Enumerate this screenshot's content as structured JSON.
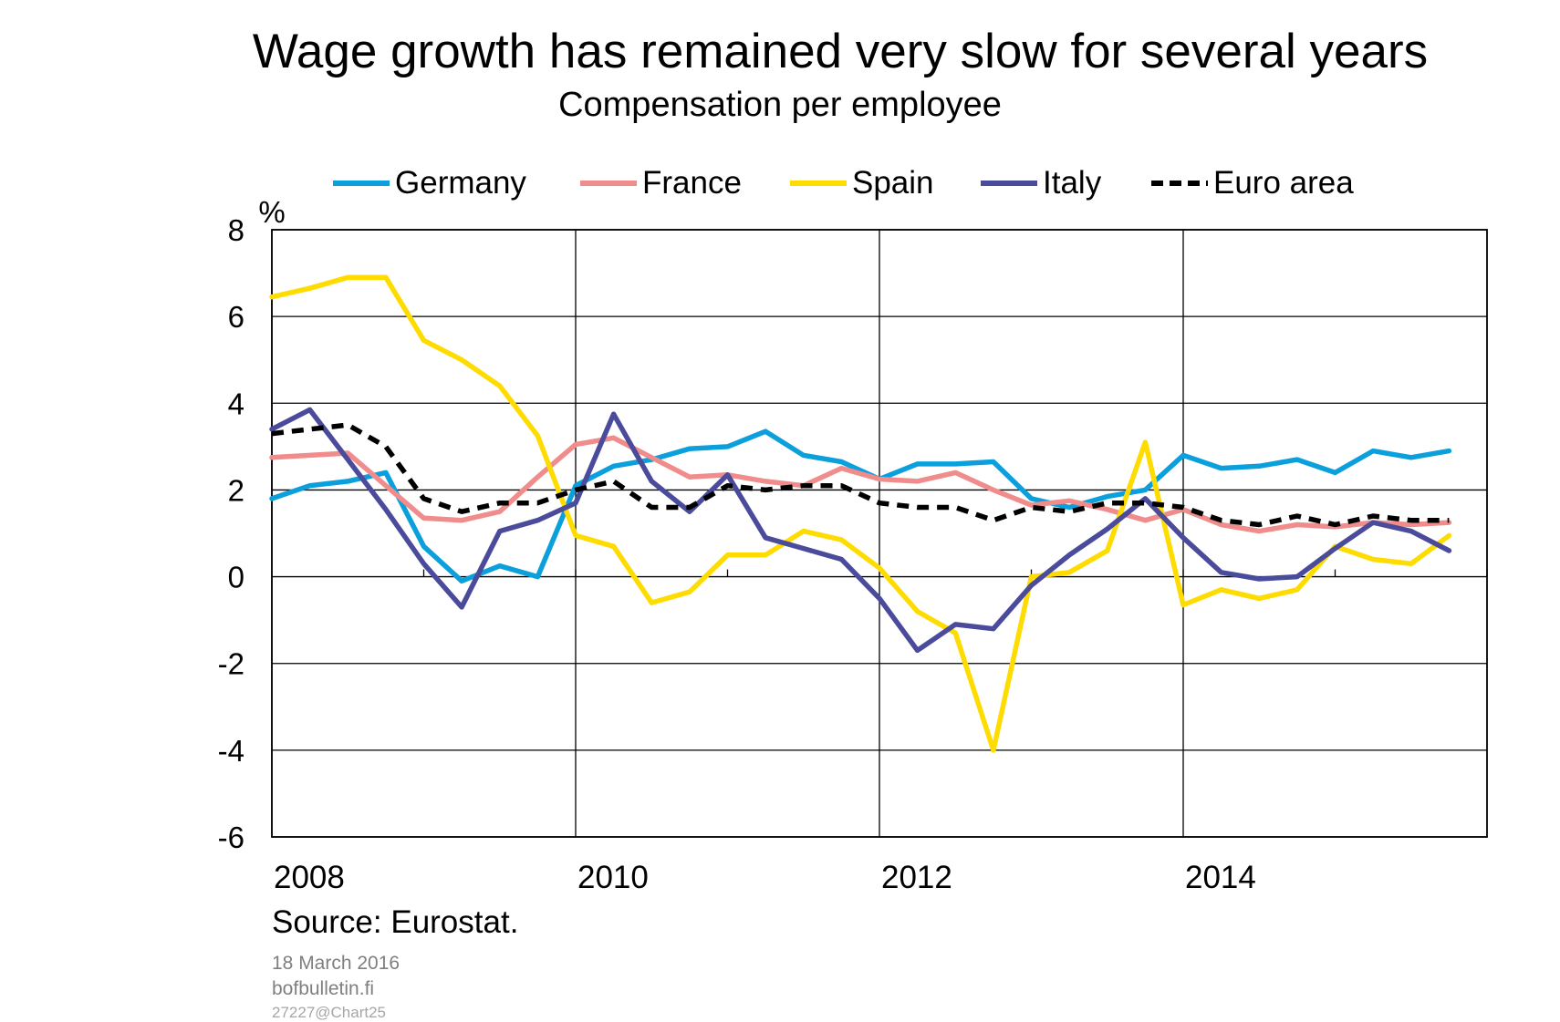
{
  "title": "Wage growth has remained very slow for several years",
  "subtitle": "Compensation per employee",
  "source": "Source: Eurostat.",
  "date": "18 March 2016",
  "site": "bofbulletin.fi",
  "chart_id": "27227@Chart25",
  "chart_data": {
    "type": "line",
    "ylabel": "%",
    "xlabel": "",
    "ylim": [
      -6,
      8
    ],
    "yticks": [
      -6,
      -4,
      -2,
      0,
      2,
      4,
      6,
      8
    ],
    "xlim": [
      2008,
      2016
    ],
    "xticks": [
      "2008",
      "2010",
      "2012",
      "2014"
    ],
    "grid": true,
    "legend": "top",
    "x": [
      2008.0,
      2008.25,
      2008.5,
      2008.75,
      2009.0,
      2009.25,
      2009.5,
      2009.75,
      2010.0,
      2010.25,
      2010.5,
      2010.75,
      2011.0,
      2011.25,
      2011.5,
      2011.75,
      2012.0,
      2012.25,
      2012.5,
      2012.75,
      2013.0,
      2013.25,
      2013.5,
      2013.75,
      2014.0,
      2014.25,
      2014.5,
      2014.75,
      2015.0,
      2015.25,
      2015.5,
      2015.75
    ],
    "series": [
      {
        "name": "Germany",
        "color": "#0BA0DC",
        "dashed": false,
        "values": [
          1.8,
          2.1,
          2.2,
          2.4,
          0.7,
          -0.1,
          0.25,
          0.0,
          2.1,
          2.55,
          2.7,
          2.95,
          3.0,
          3.35,
          2.8,
          2.65,
          2.25,
          2.6,
          2.6,
          2.65,
          1.8,
          1.6,
          1.85,
          2.0,
          2.8,
          2.5,
          2.55,
          2.7,
          2.4,
          2.9,
          2.75,
          2.9
        ]
      },
      {
        "name": "France",
        "color": "#F08C8C",
        "dashed": false,
        "values": [
          2.75,
          2.8,
          2.85,
          2.1,
          1.35,
          1.3,
          1.5,
          2.3,
          3.05,
          3.2,
          2.75,
          2.3,
          2.35,
          2.2,
          2.1,
          2.5,
          2.25,
          2.2,
          2.4,
          2.0,
          1.65,
          1.75,
          1.55,
          1.3,
          1.55,
          1.2,
          1.05,
          1.2,
          1.15,
          1.25,
          1.2,
          1.25
        ]
      },
      {
        "name": "Spain",
        "color": "#FFDC00",
        "dashed": false,
        "values": [
          6.45,
          6.65,
          6.9,
          6.9,
          5.45,
          5.0,
          4.4,
          3.25,
          0.95,
          0.7,
          -0.6,
          -0.35,
          0.5,
          0.5,
          1.05,
          0.85,
          0.2,
          -0.8,
          -1.3,
          -4.0,
          0.0,
          0.1,
          0.6,
          3.1,
          -0.65,
          -0.3,
          -0.5,
          -0.3,
          0.7,
          0.4,
          0.3,
          0.95
        ]
      },
      {
        "name": "Italy",
        "color": "#4B4B9B",
        "dashed": false,
        "values": [
          3.4,
          3.85,
          2.7,
          1.55,
          0.3,
          -0.7,
          1.05,
          1.3,
          1.7,
          3.75,
          2.2,
          1.5,
          2.35,
          0.9,
          0.65,
          0.4,
          -0.5,
          -1.7,
          -1.1,
          -1.2,
          -0.2,
          0.5,
          1.1,
          1.8,
          0.9,
          0.1,
          -0.05,
          0.0,
          0.65,
          1.25,
          1.05,
          0.6
        ]
      },
      {
        "name": "Euro area",
        "color": "#000000",
        "dashed": true,
        "values": [
          3.3,
          3.4,
          3.5,
          3.0,
          1.8,
          1.5,
          1.7,
          1.7,
          2.0,
          2.2,
          1.6,
          1.6,
          2.1,
          2.0,
          2.1,
          2.1,
          1.7,
          1.6,
          1.6,
          1.3,
          1.6,
          1.5,
          1.7,
          1.7,
          1.6,
          1.3,
          1.2,
          1.4,
          1.2,
          1.4,
          1.3,
          1.3
        ]
      }
    ]
  }
}
